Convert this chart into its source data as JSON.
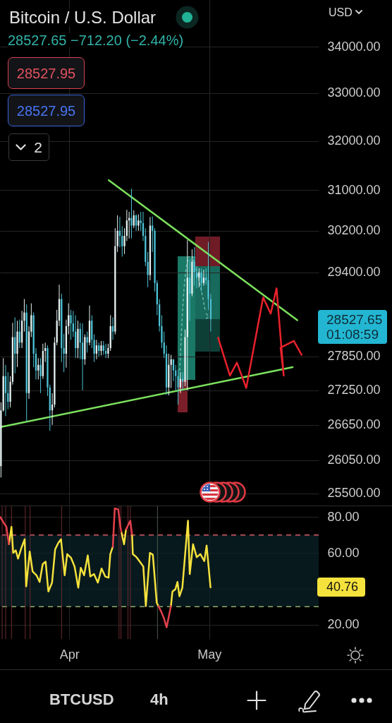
{
  "chart_data": [
    {
      "type": "candlestick",
      "title": "Bitcoin / U.S. Dollar",
      "subtitle": "28527.65 −712.20 (−2.44%)",
      "x": [
        "--03-17T08:00",
        "--03-17T20:00",
        "--03-18T08:00",
        "--03-18T20:00",
        "--03-19T08:00",
        "--03-19T20:00",
        "--03-20T08:00",
        "--03-20T20:00",
        "--03-21T08:00",
        "--03-21T20:00",
        "--03-22T08:00",
        "--03-22T20:00",
        "--03-23T08:00",
        "--03-23T20:00",
        "--03-24T08:00",
        "--03-24T20:00",
        "--03-25T08:00",
        "--03-25T20:00",
        "--03-26T08:00",
        "--03-26T20:00",
        "--03-27T08:00",
        "--03-27T20:00",
        "--03-28T08:00",
        "--03-28T20:00",
        "--03-29T08:00",
        "--03-29T20:00",
        "--03-30T08:00",
        "--03-30T20:00",
        "--03-31T08:00",
        "--03-31T20:00",
        "--04-01T08:00",
        "--04-01T20:00",
        "--04-02T08:00",
        "--04-02T20:00",
        "--04-03T08:00",
        "--04-03T20:00",
        "--04-04T08:00",
        "--04-04T20:00",
        "--04-05T08:00",
        "--04-05T20:00",
        "--04-06T08:00",
        "--04-06T20:00",
        "--04-07T08:00",
        "--04-07T20:00",
        "--04-08T08:00",
        "--04-08T20:00",
        "--04-09T08:00",
        "--04-09T20:00",
        "--04-10T08:00",
        "--04-10T20:00",
        "--04-11T08:00",
        "--04-11T20:00",
        "--04-12T08:00",
        "--04-12T20:00",
        "--04-13T08:00",
        "--04-13T20:00",
        "--04-14T08:00",
        "--04-14T20:00",
        "--04-15T08:00",
        "--04-15T20:00",
        "--04-16T08:00",
        "--04-16T20:00",
        "--04-17T08:00",
        "--04-17T20:00",
        "--04-18T08:00",
        "--04-18T20:00",
        "--04-19T08:00",
        "--04-19T20:00",
        "--04-20T08:00",
        "--04-20T20:00",
        "--04-21T08:00",
        "--04-21T20:00",
        "--04-22T08:00",
        "--04-22T20:00",
        "--04-23T08:00",
        "--04-23T20:00",
        "--04-24T08:00",
        "--04-24T20:00",
        "--04-25T08:00",
        "--04-25T20:00",
        "--04-26T08:00",
        "--04-26T20:00",
        "--04-27T08:00",
        "--04-27T20:00",
        "--04-28T08:00",
        "--04-28T20:00",
        "--04-29T08:00",
        "--04-29T20:00",
        "--04-30T08:00",
        "--04-30T20:00",
        "--05-01T08:00"
      ],
      "ohlc": [
        [
          25950,
          27040,
          25760,
          26900
        ],
        [
          26900,
          27820,
          26880,
          27500
        ],
        [
          27500,
          27700,
          26800,
          27200
        ],
        [
          27200,
          27570,
          26920,
          27050
        ],
        [
          27050,
          27500,
          26950,
          27400
        ],
        [
          27400,
          28460,
          27350,
          28200
        ],
        [
          28200,
          28560,
          27550,
          27900
        ],
        [
          27900,
          28500,
          27660,
          28300
        ],
        [
          28300,
          28520,
          28000,
          28100
        ],
        [
          28100,
          28680,
          28000,
          28500
        ],
        [
          28500,
          28900,
          28300,
          28650
        ],
        [
          28650,
          28800,
          26700,
          27200
        ],
        [
          27200,
          28400,
          27100,
          28300
        ],
        [
          28300,
          28820,
          28200,
          28600
        ],
        [
          28600,
          28650,
          27660,
          27900
        ],
        [
          27900,
          28000,
          27440,
          27600
        ],
        [
          27600,
          27820,
          27440,
          27700
        ],
        [
          27700,
          27820,
          27200,
          27500
        ],
        [
          27500,
          28080,
          27450,
          27950
        ],
        [
          27950,
          28100,
          27750,
          28000
        ],
        [
          28000,
          28050,
          27150,
          27300
        ],
        [
          27300,
          27350,
          26550,
          26900
        ],
        [
          26900,
          27200,
          26650,
          27000
        ],
        [
          27000,
          28200,
          26950,
          28100
        ],
        [
          28100,
          28700,
          28050,
          28500
        ],
        [
          28500,
          29170,
          28400,
          28900
        ],
        [
          28900,
          29000,
          27750,
          28000
        ],
        [
          28000,
          28260,
          27570,
          27900
        ],
        [
          27900,
          28520,
          27650,
          28400
        ],
        [
          28400,
          28820,
          28250,
          28600
        ],
        [
          28600,
          28700,
          28150,
          28450
        ],
        [
          28450,
          28680,
          28200,
          28300
        ],
        [
          28300,
          28600,
          27820,
          28000
        ],
        [
          28000,
          28500,
          27820,
          28350
        ],
        [
          28350,
          28460,
          27800,
          28100
        ],
        [
          28100,
          28450,
          27250,
          27800
        ],
        [
          27800,
          28250,
          27700,
          28200
        ],
        [
          28200,
          28300,
          27920,
          28100
        ],
        [
          28100,
          28780,
          28050,
          28500
        ],
        [
          28500,
          28600,
          28000,
          28150
        ],
        [
          28150,
          28250,
          27750,
          27900
        ],
        [
          27900,
          28150,
          27800,
          28050
        ],
        [
          28050,
          28100,
          27850,
          27950
        ],
        [
          27950,
          28130,
          27870,
          28050
        ],
        [
          28050,
          28130,
          27880,
          27950
        ],
        [
          27950,
          28080,
          27820,
          27900
        ],
        [
          27900,
          28080,
          27820,
          28000
        ],
        [
          28000,
          28600,
          27950,
          28400
        ],
        [
          28400,
          28560,
          28150,
          28300
        ],
        [
          28300,
          30250,
          28250,
          29900
        ],
        [
          29900,
          30500,
          29790,
          30200
        ],
        [
          30200,
          30470,
          29880,
          30100
        ],
        [
          30100,
          30290,
          29700,
          29900
        ],
        [
          29900,
          30250,
          29750,
          30100
        ],
        [
          30100,
          30610,
          30000,
          30400
        ],
        [
          30400,
          30570,
          30050,
          30450
        ],
        [
          30450,
          31030,
          30050,
          30300
        ],
        [
          30300,
          30600,
          30250,
          30500
        ],
        [
          30500,
          30520,
          30200,
          30300
        ],
        [
          30300,
          30520,
          30200,
          30400
        ],
        [
          30400,
          30570,
          30200,
          30350
        ],
        [
          30350,
          30570,
          30000,
          30100
        ],
        [
          30100,
          30250,
          29520,
          29600
        ],
        [
          29600,
          29790,
          29120,
          29350
        ],
        [
          29350,
          30470,
          29250,
          30300
        ],
        [
          30300,
          30480,
          29790,
          30200
        ],
        [
          30200,
          30250,
          29040,
          29200
        ],
        [
          29200,
          29250,
          28600,
          28800
        ],
        [
          28800,
          28900,
          28300,
          28400
        ],
        [
          28400,
          28600,
          28000,
          28100
        ],
        [
          28100,
          28300,
          27820,
          27900
        ],
        [
          27900,
          28050,
          27170,
          27300
        ],
        [
          27300,
          27900,
          27160,
          27700
        ],
        [
          27700,
          27880,
          27290,
          27800
        ],
        [
          27800,
          27800,
          27410,
          27600
        ],
        [
          27600,
          27700,
          27250,
          27500
        ],
        [
          27500,
          27620,
          27000,
          27300
        ],
        [
          27300,
          27570,
          27200,
          27450
        ],
        [
          27450,
          27570,
          27250,
          27400
        ],
        [
          27400,
          28340,
          27320,
          28200
        ],
        [
          28200,
          30020,
          27250,
          29300
        ],
        [
          29300,
          29650,
          28500,
          29000
        ],
        [
          29000,
          29840,
          28950,
          29600
        ],
        [
          29600,
          29880,
          29150,
          29400
        ],
        [
          29400,
          29520,
          29100,
          29300
        ],
        [
          29300,
          29480,
          29120,
          29400
        ],
        [
          29400,
          29480,
          29040,
          29200
        ],
        [
          29200,
          29450,
          29150,
          29300
        ],
        [
          29300,
          29480,
          29170,
          29250
        ],
        [
          29250,
          29980,
          28700,
          28900
        ],
        [
          28900,
          29000,
          28300,
          28527.65
        ]
      ],
      "colors": [
        "#e6f2f2",
        "#e6f2f2",
        "#4cc3d6",
        "#4cc3d6",
        "#e6f2f2",
        "#e6f2f2",
        "#4cc3d6",
        "#e6f2f2",
        "#4cc3d6",
        "#e6f2f2",
        "#e6f2f2",
        "#4cc3d6",
        "#e6f2f2",
        "#e6f2f2",
        "#4cc3d6",
        "#4cc3d6",
        "#e6f2f2",
        "#4cc3d6",
        "#e6f2f2",
        "#e6f2f2",
        "#4cc3d6",
        "#4cc3d6",
        "#e6f2f2",
        "#e6f2f2",
        "#e6f2f2",
        "#e6f2f2",
        "#4cc3d6",
        "#4cc3d6",
        "#e6f2f2",
        "#e6f2f2",
        "#4cc3d6",
        "#4cc3d6",
        "#4cc3d6",
        "#e6f2f2",
        "#4cc3d6",
        "#4cc3d6",
        "#e6f2f2",
        "#4cc3d6",
        "#e6f2f2",
        "#4cc3d6",
        "#4cc3d6",
        "#e6f2f2",
        "#4cc3d6",
        "#e6f2f2",
        "#4cc3d6",
        "#4cc3d6",
        "#e6f2f2",
        "#e6f2f2",
        "#4cc3d6",
        "#e6f2f2",
        "#e6f2f2",
        "#4cc3d6",
        "#4cc3d6",
        "#e6f2f2",
        "#e6f2f2",
        "#e6f2f2",
        "#4cc3d6",
        "#e6f2f2",
        "#4cc3d6",
        "#e6f2f2",
        "#4cc3d6",
        "#4cc3d6",
        "#4cc3d6",
        "#4cc3d6",
        "#e6f2f2",
        "#4cc3d6",
        "#4cc3d6",
        "#4cc3d6",
        "#4cc3d6",
        "#4cc3d6",
        "#4cc3d6",
        "#4cc3d6",
        "#e6f2f2",
        "#e6f2f2",
        "#4cc3d6",
        "#4cc3d6",
        "#4cc3d6",
        "#e6f2f2",
        "#4cc3d6",
        "#e6f2f2",
        "#e6f2f2",
        "#4cc3d6",
        "#e6f2f2",
        "#4cc3d6",
        "#4cc3d6",
        "#e6f2f2",
        "#4cc3d6",
        "#e6f2f2",
        "#4cc3d6",
        "#4cc3d6",
        "#4cc3d6"
      ],
      "series": [
        {
          "type": "line",
          "color": "#7be05c",
          "x": [
            "--04-09T11:00",
            "--05-19T22:00"
          ],
          "values": [
            31200,
            28510
          ]
        },
        {
          "type": "line",
          "color": "#7ce25e",
          "x": [
            "--03-17T03:00",
            "--05-18T22:00"
          ],
          "values": [
            26610,
            27660
          ]
        },
        {
          "type": "line",
          "color": "#e8222c",
          "x": [
            "--05-02T22:00",
            "--05-05T11:00",
            "--05-06T23:00",
            "--05-08T23:00",
            "--05-12T14:00",
            "--05-14T05:00",
            "--05-15T11:00",
            "--05-17T00:00",
            "--05-16T08:00",
            "--05-19T04:00",
            "--05-20T20:00"
          ],
          "values": [
            28190,
            27510,
            27740,
            27290,
            28930,
            28630,
            29100,
            27510,
            28010,
            28130,
            27880
          ]
        }
      ],
      "xlim": [
        "--03-17T03:00",
        "--05-24T12:00"
      ],
      "xticks": [
        {
          "value": "--04-01",
          "label": null
        },
        {
          "value": "--05-01",
          "label": null
        }
      ],
      "ylim": [
        25300,
        35040
      ],
      "yticks": [
        {
          "value": 25500,
          "label": "25500.00"
        },
        {
          "value": 26050,
          "label": "26050.00"
        },
        {
          "value": 26650,
          "label": "26650.00"
        },
        {
          "value": 27250,
          "label": "27250.00"
        },
        {
          "value": 27850,
          "label": "27850.00"
        },
        {
          "value": 29400,
          "label": "29400.00"
        },
        {
          "value": 30200,
          "label": "30200.00"
        },
        {
          "value": 31000,
          "label": "31000.00"
        },
        {
          "value": 32000,
          "label": "32000.00"
        },
        {
          "value": 33000,
          "label": "33000.00"
        },
        {
          "value": 34000,
          "label": "34000.00"
        }
      ],
      "log": true,
      "grid": true,
      "tick_labels": "y",
      "annotations": [
        "28527.65",
        "01:08:59",
        "28527.95",
        "28527.95",
        "2",
        "USD",
        "BTCUSD",
        "4h"
      ]
    },
    {
      "type": "line",
      "x": [
        "--03-17T04:00",
        "--03-17T23:00",
        "--03-18T12:00",
        "--03-19T01:00",
        "--03-19T14:00",
        "--03-19T23:00",
        "--03-20T12:00",
        "--03-21T00:00",
        "--03-21T17:00",
        "--03-22T10:00",
        "--03-22T18:00",
        "--03-23T12:00",
        "--03-24T03:00",
        "--03-24T23:00",
        "--03-25T15:00",
        "--03-26T07:00",
        "--03-26T22:00",
        "--03-27T12:00",
        "--03-28T07:00",
        "--03-28T23:00",
        "--03-29T15:00",
        "--03-30T05:00",
        "--03-31T00:00",
        "--03-31T13:00",
        "--04-01T09:00",
        "--04-02T03:00",
        "--04-02T22:00",
        "--04-03T11:00",
        "--04-04T04:00",
        "--04-04T23:00",
        "--04-05T12:00",
        "--04-06T07:00",
        "--04-07T03:00",
        "--04-07T22:00",
        "--04-08T17:00",
        "--04-09T10:00",
        "--04-09T19:00",
        "--04-10T08:00",
        "--04-10T18:00",
        "--04-11T12:00",
        "--04-11T23:00",
        "--04-12T04:00",
        "--04-12T18:00",
        "--04-13T04:00",
        "--04-14T02:00",
        "--04-14T11:00",
        "--04-14T15:00",
        "--04-15T10:00",
        "--04-16T03:00",
        "--04-16T21:00",
        "--04-17T10:00",
        "--04-18T07:00",
        "--04-18T22:00",
        "--04-19T18:00",
        "--04-20T03:00",
        "--04-20T19:00",
        "--04-21T08:00",
        "--04-21T21:00",
        "--04-22T14:00",
        "--04-22T19:00",
        "--04-23T03:00",
        "--04-23T18:00",
        "--04-24T05:00",
        "--04-24T15:00",
        "--04-25T06:00",
        "--04-25T22:00",
        "--04-26T11:00",
        "--04-26T20:00",
        "--04-27T13:00",
        "--04-28T08:00",
        "--04-29T03:00",
        "--04-29T23:00",
        "--04-30T11:00",
        "--04-30T20:00",
        "--05-01T07:00"
      ],
      "series": [
        {
          "color": "#f5e23c",
          "values": [
            null,
            null,
            null,
            64.8,
            74.5,
            60,
            61.4,
            56.8,
            62.7,
            67.6,
            41.3,
            60.7,
            49.6,
            47.5,
            43.8,
            53.7,
            55.1,
            38.5,
            43.4,
            62,
            65.5,
            67.6,
            47.5,
            59.3,
            57.2,
            52.4,
            40.6,
            51.7,
            47.5,
            58.6,
            46.8,
            48.2,
            43.4,
            51.3,
            46.8,
            46.2,
            59.3,
            63.4,
            null,
            null,
            null,
            71.7,
            64.8,
            73.1,
            null,
            70.3,
            59.3,
            57.6,
            55.1,
            52.4,
            30.3,
            60,
            59,
            32.3,
            30.3,
            null,
            null,
            null,
            null,
            30.3,
            38.5,
            39.7,
            43.8,
            35.8,
            40.6,
            61.4,
            77.9,
            48.2,
            64.8,
            57.6,
            59.3,
            55.4,
            64.1,
            53.7,
            40.76
          ]
        },
        {
          "color": "#e5404c",
          "values": [
            80,
            76.6,
            74.5,
            64.8,
            null,
            null,
            null,
            null,
            null,
            null,
            null,
            null,
            null,
            null,
            null,
            null,
            null,
            null,
            null,
            null,
            null,
            null,
            null,
            null,
            null,
            null,
            null,
            null,
            null,
            null,
            null,
            null,
            null,
            null,
            null,
            null,
            null,
            63.4,
            84.8,
            84.2,
            74.5,
            71.7,
            null,
            73.1,
            77.9,
            70.3,
            null,
            null,
            null,
            null,
            null,
            null,
            null,
            null,
            30.3,
            26.8,
            23.3,
            18.5,
            27.5,
            30.3,
            null,
            null,
            null,
            null,
            null,
            null,
            null,
            null,
            null,
            null,
            null,
            null,
            null,
            null,
            null
          ]
        }
      ],
      "xlim": [
        "--03-17T03:00",
        "--05-24T12:00"
      ],
      "xticks": [
        {
          "value": "--04-01",
          "label": "Apr"
        },
        {
          "value": "--05-01",
          "label": "May"
        }
      ],
      "ylim": [
        12,
        86
      ],
      "yticks": [
        {
          "value": 20,
          "label": "20.00"
        },
        {
          "value": 40,
          "label": null
        },
        {
          "value": 60,
          "label": "60.00"
        },
        {
          "value": 80,
          "label": "80.00"
        }
      ],
      "grid": true,
      "bands": [
        {
          "axis": "y",
          "from": 30,
          "to": 70,
          "color": "#0a2227"
        }
      ],
      "ref_lines": [
        {
          "axis": "y",
          "value": 70,
          "color": "#d95a68",
          "line_style": "dashed"
        },
        {
          "axis": "y",
          "value": 30,
          "color": "#8fae6c",
          "line_style": "dashed"
        },
        {
          "axis": "x",
          "value": "--03-17T14:00",
          "color": "#6b2b30"
        },
        {
          "axis": "x",
          "value": "--03-18T08:00",
          "color": "#6b2b30"
        },
        {
          "axis": "x",
          "value": "--03-19T14:00",
          "color": "#6b2b30"
        },
        {
          "axis": "x",
          "value": "--03-22T13:00",
          "color": "#6b2b30"
        },
        {
          "axis": "x",
          "value": "--03-23T14:00",
          "color": "#6b2b30"
        },
        {
          "axis": "x",
          "value": "--03-30T08:00",
          "color": "#6b2b30"
        },
        {
          "axis": "x",
          "value": "--04-11T16:00",
          "color": "#6b2b30"
        },
        {
          "axis": "x",
          "value": "--04-12T02:00",
          "color": "#6b2b30"
        },
        {
          "axis": "x",
          "value": "--04-13T14:00",
          "color": "#6b2b30"
        },
        {
          "axis": "x",
          "value": "--04-14T02:00",
          "color": "#6b2b30"
        },
        {
          "axis": "x",
          "value": "--04-19T22:00",
          "color": "#4d5a4a"
        }
      ],
      "annotations": [
        "40.76"
      ]
    }
  ]
}
